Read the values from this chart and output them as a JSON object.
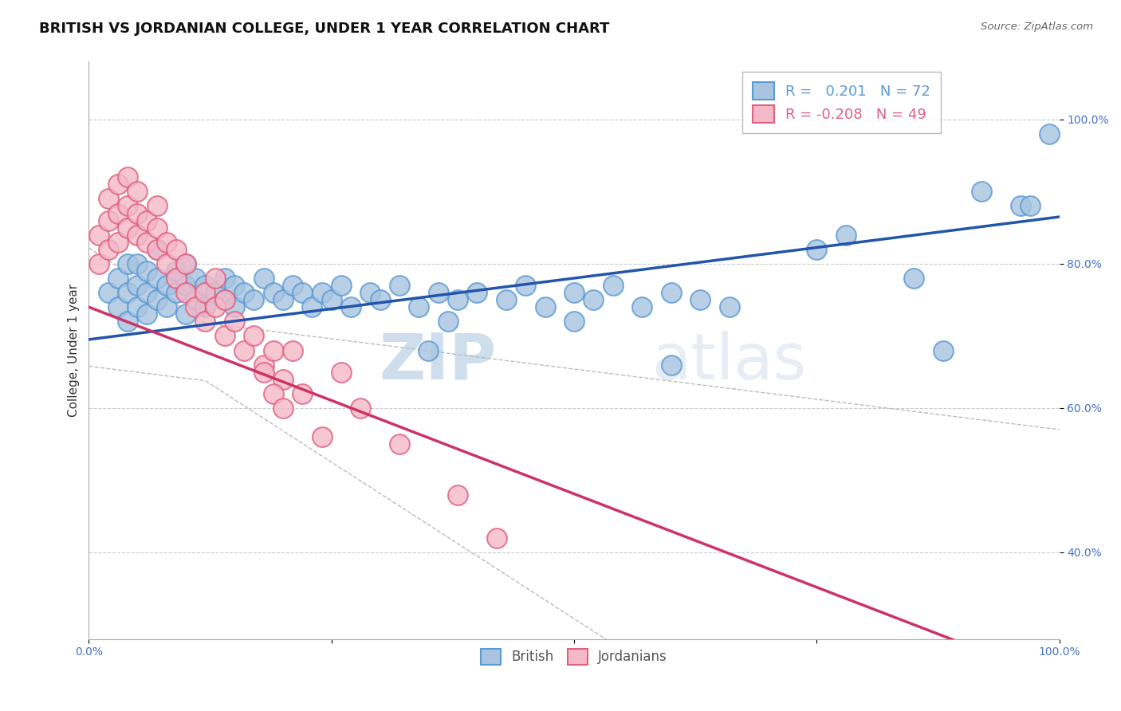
{
  "title": "BRITISH VS JORDANIAN COLLEGE, UNDER 1 YEAR CORRELATION CHART",
  "source_text": "Source: ZipAtlas.com",
  "ylabel": "College, Under 1 year",
  "watermark_zip": "ZIP",
  "watermark_atlas": "atlas",
  "blue_R": 0.201,
  "blue_N": 72,
  "pink_R": -0.208,
  "pink_N": 49,
  "blue_color": "#a8c4e0",
  "blue_edge_color": "#5b9bd5",
  "pink_color": "#f4b8c8",
  "pink_edge_color": "#e06080",
  "blue_line_color": "#2255aa",
  "pink_line_color": "#cc3366",
  "conf_band_color": "#bbbbbb",
  "xlim": [
    0.0,
    1.0
  ],
  "ylim": [
    0.28,
    1.08
  ],
  "yticks": [
    0.4,
    0.6,
    0.8,
    1.0
  ],
  "ytick_labels": [
    "40.0%",
    "60.0%",
    "80.0%",
    "100.0%"
  ],
  "xticks": [
    0.0,
    0.25,
    0.5,
    0.75,
    1.0
  ],
  "xtick_labels": [
    "0.0%",
    "",
    "",
    "",
    "100.0%"
  ],
  "blue_x": [
    0.02,
    0.03,
    0.03,
    0.04,
    0.04,
    0.04,
    0.05,
    0.05,
    0.05,
    0.06,
    0.06,
    0.06,
    0.07,
    0.07,
    0.07,
    0.08,
    0.08,
    0.09,
    0.09,
    0.1,
    0.1,
    0.1,
    0.11,
    0.11,
    0.12,
    0.12,
    0.13,
    0.14,
    0.14,
    0.15,
    0.15,
    0.16,
    0.17,
    0.18,
    0.19,
    0.2,
    0.21,
    0.22,
    0.23,
    0.24,
    0.25,
    0.26,
    0.27,
    0.29,
    0.3,
    0.32,
    0.34,
    0.36,
    0.38,
    0.4,
    0.43,
    0.45,
    0.47,
    0.5,
    0.52,
    0.54,
    0.57,
    0.6,
    0.63,
    0.66,
    0.35,
    0.37,
    0.5,
    0.6,
    0.75,
    0.78,
    0.85,
    0.88,
    0.92,
    0.96,
    0.97,
    0.99
  ],
  "blue_y": [
    0.76,
    0.74,
    0.78,
    0.72,
    0.76,
    0.8,
    0.74,
    0.77,
    0.8,
    0.73,
    0.76,
    0.79,
    0.75,
    0.78,
    0.82,
    0.74,
    0.77,
    0.76,
    0.79,
    0.73,
    0.77,
    0.8,
    0.75,
    0.78,
    0.74,
    0.77,
    0.76,
    0.75,
    0.78,
    0.74,
    0.77,
    0.76,
    0.75,
    0.78,
    0.76,
    0.75,
    0.77,
    0.76,
    0.74,
    0.76,
    0.75,
    0.77,
    0.74,
    0.76,
    0.75,
    0.77,
    0.74,
    0.76,
    0.75,
    0.76,
    0.75,
    0.77,
    0.74,
    0.76,
    0.75,
    0.77,
    0.74,
    0.76,
    0.75,
    0.74,
    0.68,
    0.72,
    0.72,
    0.66,
    0.82,
    0.84,
    0.78,
    0.68,
    0.9,
    0.88,
    0.88,
    0.98
  ],
  "pink_x": [
    0.01,
    0.01,
    0.02,
    0.02,
    0.02,
    0.03,
    0.03,
    0.03,
    0.04,
    0.04,
    0.04,
    0.05,
    0.05,
    0.05,
    0.06,
    0.06,
    0.07,
    0.07,
    0.07,
    0.08,
    0.08,
    0.09,
    0.09,
    0.1,
    0.1,
    0.11,
    0.12,
    0.12,
    0.13,
    0.14,
    0.15,
    0.16,
    0.17,
    0.18,
    0.19,
    0.2,
    0.13,
    0.14,
    0.18,
    0.19,
    0.2,
    0.21,
    0.22,
    0.24,
    0.26,
    0.28,
    0.32,
    0.38,
    0.42
  ],
  "pink_y": [
    0.8,
    0.84,
    0.82,
    0.86,
    0.89,
    0.83,
    0.87,
    0.91,
    0.85,
    0.88,
    0.92,
    0.84,
    0.87,
    0.9,
    0.83,
    0.86,
    0.82,
    0.85,
    0.88,
    0.8,
    0.83,
    0.78,
    0.82,
    0.76,
    0.8,
    0.74,
    0.76,
    0.72,
    0.74,
    0.7,
    0.72,
    0.68,
    0.7,
    0.66,
    0.68,
    0.64,
    0.78,
    0.75,
    0.65,
    0.62,
    0.6,
    0.68,
    0.62,
    0.56,
    0.65,
    0.6,
    0.55,
    0.48,
    0.42
  ],
  "blue_line_x0": 0.0,
  "blue_line_y0": 0.695,
  "blue_line_x1": 1.0,
  "blue_line_y1": 0.865,
  "pink_line_x0": 0.0,
  "pink_line_y0": 0.74,
  "pink_line_x1": 0.28,
  "pink_line_y1": 0.595
}
